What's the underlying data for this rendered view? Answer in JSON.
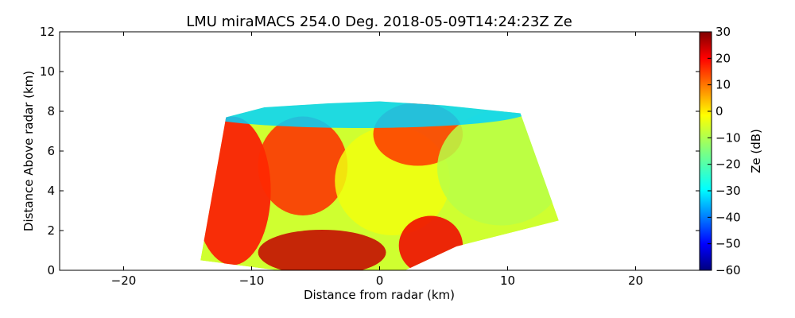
{
  "chart_data": {
    "type": "heatmap",
    "title": "LMU miraMACS 254.0 Deg. 2018-05-09T14:24:23Z  Ze",
    "xlabel": "Distance from radar (km)",
    "ylabel": "Distance Above radar  (km)",
    "xlim": [
      -25,
      25
    ],
    "ylim": [
      0,
      12
    ],
    "x_ticks": [
      -20,
      -10,
      0,
      10,
      20
    ],
    "y_ticks": [
      0,
      2,
      4,
      6,
      8,
      10,
      12
    ],
    "colorbar": {
      "label": "Ze (dB)",
      "range": [
        -60,
        30
      ],
      "ticks": [
        30,
        20,
        10,
        0,
        -10,
        -20,
        -30,
        -40,
        -50,
        -60
      ],
      "colormap": "jet"
    },
    "scan_sector": {
      "max_range_km": 14,
      "echo_top_km": [
        7.7,
        8.2,
        8.4,
        8.5,
        8.3,
        7.9
      ],
      "echo_top_x_km": [
        -12,
        -9,
        -4,
        0,
        5,
        11
      ]
    },
    "reflectivity_regions": [
      {
        "x": [
          -14,
          -9
        ],
        "y": [
          0.5,
          7.5
        ],
        "ze": 18
      },
      {
        "x": [
          -9,
          -3
        ],
        "y": [
          3,
          7.5
        ],
        "ze": 15
      },
      {
        "x": [
          -9,
          0
        ],
        "y": [
          0,
          1.8
        ],
        "ze": 24
      },
      {
        "x": [
          -3,
          5
        ],
        "y": [
          2,
          7
        ],
        "ze": -5
      },
      {
        "x": [
          0,
          6
        ],
        "y": [
          5.5,
          8.2
        ],
        "ze": 14
      },
      {
        "x": [
          2,
          6
        ],
        "y": [
          0,
          2.5
        ],
        "ze": 20
      },
      {
        "x": [
          5,
          14
        ],
        "y": [
          2.5,
          7.8
        ],
        "ze": -10
      },
      {
        "x": [
          -14,
          11
        ],
        "y": [
          7.4,
          8.5
        ],
        "ze": -30
      }
    ]
  }
}
